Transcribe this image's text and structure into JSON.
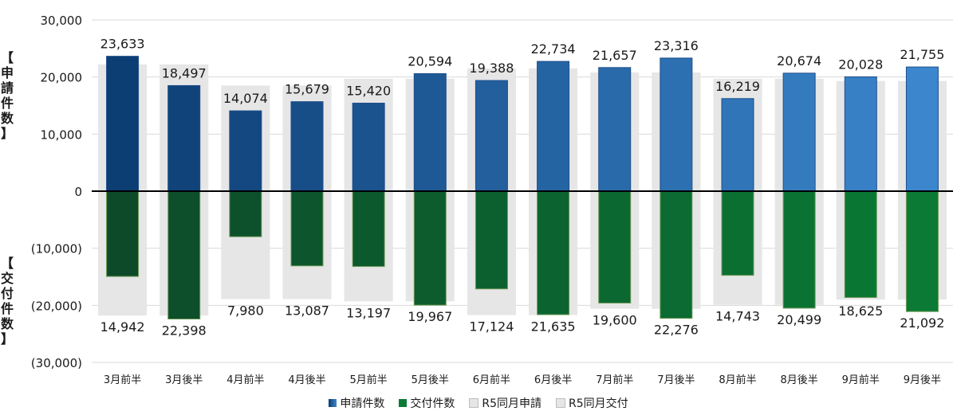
{
  "chart_data": {
    "type": "bar",
    "categories": [
      "3月前半",
      "3月後半",
      "4月前半",
      "4月後半",
      "5月前半",
      "5月後半",
      "6月前半",
      "6月後半",
      "7月前半",
      "7月後半",
      "8月前半",
      "8月後半",
      "9月前半",
      "9月後半"
    ],
    "series": [
      {
        "name": "申請件数",
        "values": [
          23633,
          18497,
          14074,
          15679,
          15420,
          20594,
          19388,
          22734,
          21657,
          23316,
          16219,
          20674,
          20028,
          21755
        ]
      },
      {
        "name": "交付件数",
        "values": [
          -14942,
          -22398,
          -7980,
          -13087,
          -13197,
          -19967,
          -17124,
          -21635,
          -19600,
          -22276,
          -14743,
          -20499,
          -18625,
          -21092
        ]
      },
      {
        "name": "R5同月申請",
        "values": [
          22200,
          22200,
          18500,
          18500,
          19700,
          19700,
          21500,
          21500,
          20800,
          20800,
          19700,
          19700,
          19300,
          19300
        ]
      },
      {
        "name": "R5同月交付",
        "values": [
          -21800,
          -21800,
          -18900,
          -18900,
          -19300,
          -19300,
          -21700,
          -21700,
          -20600,
          -20600,
          -19900,
          -19900,
          -19000,
          -19000
        ]
      }
    ],
    "data_labels_top": [
      "23,633",
      "18,497",
      "14,074",
      "15,679",
      "15,420",
      "20,594",
      "19,388",
      "22,734",
      "21,657",
      "23,316",
      "16,219",
      "20,674",
      "20,028",
      "21,755"
    ],
    "data_labels_bottom": [
      "14,942",
      "22,398",
      "7,980",
      "13,087",
      "13,197",
      "19,967",
      "17,124",
      "21,635",
      "19,600",
      "22,276",
      "14,743",
      "20,499",
      "18,625",
      "21,092"
    ],
    "y_ticks": [
      "30,000",
      "20,000",
      "10,000",
      "0",
      "(10,000)",
      "(20,000)",
      "(30,000)"
    ],
    "y_tick_values": [
      30000,
      20000,
      10000,
      0,
      -10000,
      -20000,
      -30000
    ],
    "ylim": [
      -30000,
      30000
    ],
    "ylabel_top": "【申請件数】",
    "ylabel_bottom": "【交付件数】",
    "grid": true,
    "legend_position": "bottom",
    "colors": {
      "apply_dark": "#0c3d73",
      "apply_light": "#3b86cc",
      "issue_dark": "#0d4a2a",
      "issue_light": "#0a7a35",
      "r5": "#e6e6e6",
      "axis": "#000000",
      "grid": "#d9d9d9"
    }
  }
}
